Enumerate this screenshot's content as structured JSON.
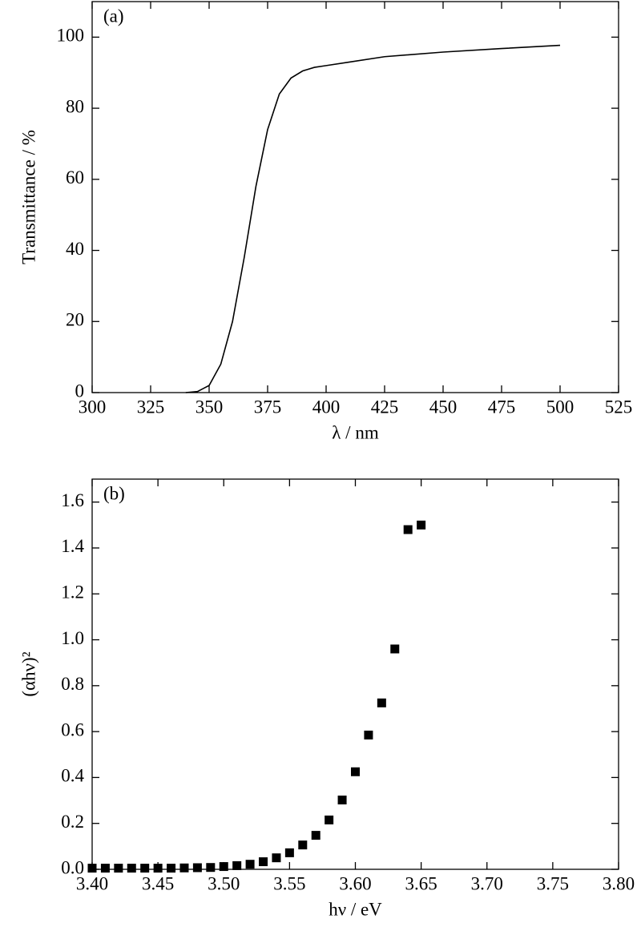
{
  "chart_data": [
    {
      "type": "line",
      "title": "(a)",
      "x_label": "λ / nm",
      "y_label": "Transmittance / %",
      "x": [
        340,
        345,
        350,
        355,
        360,
        365,
        370,
        375,
        380,
        385,
        390,
        395,
        400,
        410,
        425,
        450,
        475,
        500
      ],
      "values": [
        0,
        0.3,
        2,
        8,
        20,
        38,
        58,
        74,
        84,
        88.5,
        90.5,
        91.5,
        92,
        93,
        94.5,
        95.8,
        96.8,
        97.7
      ],
      "color": "#000000",
      "xlim": [
        300,
        525
      ],
      "xticks": [
        300,
        325,
        350,
        375,
        400,
        425,
        450,
        475,
        500,
        525
      ],
      "ylim": [
        0,
        110
      ],
      "yticks": [
        0,
        20,
        40,
        60,
        80,
        100
      ]
    },
    {
      "type": "scatter",
      "title": "(b)",
      "x_label": "hν / eV",
      "y_label": "(αhν)²",
      "x": [
        3.4,
        3.41,
        3.42,
        3.43,
        3.44,
        3.45,
        3.46,
        3.47,
        3.48,
        3.49,
        3.5,
        3.51,
        3.52,
        3.53,
        3.54,
        3.55,
        3.56,
        3.57,
        3.58,
        3.59,
        3.6,
        3.61,
        3.62,
        3.63,
        3.64,
        3.65
      ],
      "values": [
        0.005,
        0.005,
        0.005,
        0.005,
        0.005,
        0.005,
        0.005,
        0.006,
        0.007,
        0.008,
        0.012,
        0.016,
        0.022,
        0.033,
        0.05,
        0.072,
        0.106,
        0.148,
        0.215,
        0.302,
        0.425,
        0.585,
        0.725,
        0.96,
        1.48,
        1.5
      ],
      "color": "#000000",
      "xlim": [
        3.4,
        3.8
      ],
      "xticks": [
        {
          "value": 3.4,
          "label": "3.40"
        },
        {
          "value": 3.45,
          "label": "3.45"
        },
        {
          "value": 3.5,
          "label": "3.50"
        },
        {
          "value": 3.55,
          "label": "3.55"
        },
        {
          "value": 3.6,
          "label": "3.60"
        },
        {
          "value": 3.65,
          "label": "3.65"
        },
        {
          "value": 3.7,
          "label": "3.70"
        },
        {
          "value": 3.75,
          "label": "3.75"
        },
        {
          "value": 3.8,
          "label": "3.80"
        }
      ],
      "ylim": [
        0,
        1.7
      ],
      "yticks": [
        {
          "value": 0,
          "label": "0.0"
        },
        0.2,
        0.4,
        0.6,
        0.8,
        {
          "value": 1,
          "label": "1.0"
        },
        1.2,
        1.4,
        1.6
      ]
    }
  ]
}
